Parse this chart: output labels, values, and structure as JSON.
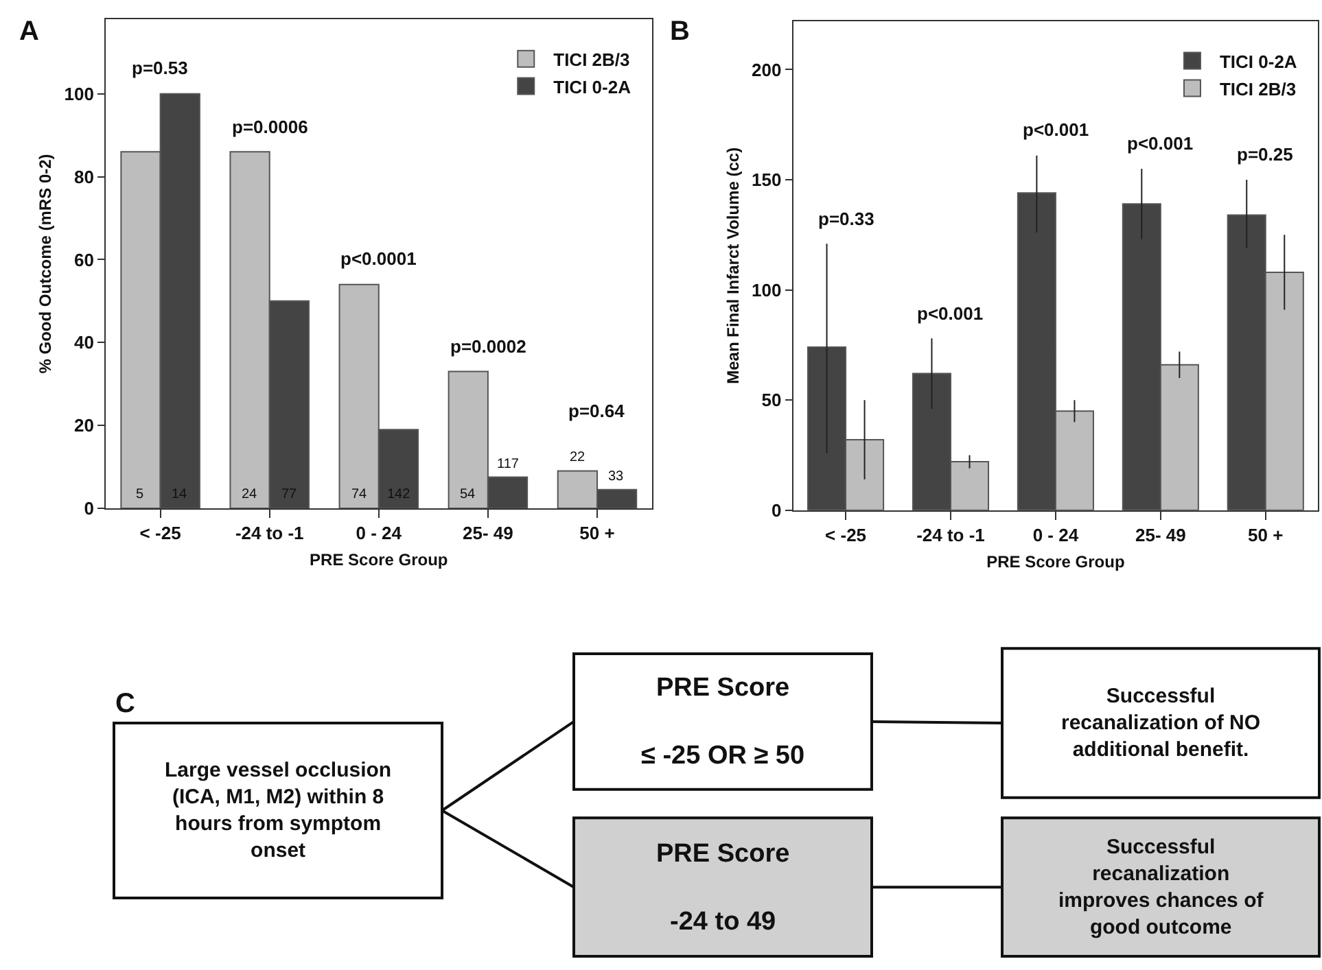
{
  "chart_data": [
    {
      "type": "bar",
      "title": "A",
      "xlabel": "PRE Score Group",
      "ylabel": "% Good Outcome (mRS 0-2)",
      "categories": [
        "< -25",
        "-24 to -1",
        "0 - 24",
        "25- 49",
        "50 +"
      ],
      "series": [
        {
          "name": "TICI 2B/3",
          "color": "#bdbdbd",
          "values": [
            86,
            86,
            54,
            33,
            9
          ]
        },
        {
          "name": "TICI 0-2A",
          "color": "#444444",
          "values": [
            100,
            50,
            19,
            7.5,
            4.5
          ]
        }
      ],
      "ylim": [
        0,
        118
      ],
      "yticks": [
        0,
        20,
        40,
        60,
        80,
        100
      ],
      "legend": "top right",
      "annotations": [
        "p=0.53",
        "p=0.0006",
        "p<0.0001",
        "p=0.0002",
        "p=0.64",
        "5",
        "24",
        "74",
        "54",
        "22",
        "14",
        "77",
        "142",
        "117",
        "33"
      ]
    },
    {
      "type": "bar",
      "title": "B",
      "xlabel": "PRE Score Group",
      "ylabel": "Mean Final Infarct Volume (cc)",
      "categories": [
        "< -25",
        "-24 to -1",
        "0 - 24",
        "25- 49",
        "50 +"
      ],
      "series": [
        {
          "name": "TICI 0-2A",
          "color": "#444444",
          "values": [
            74,
            62,
            144,
            139,
            134
          ],
          "errors": [
            [
              26,
              121
            ],
            [
              46,
              78
            ],
            [
              126,
              161
            ],
            [
              123,
              155
            ],
            [
              119,
              150
            ]
          ]
        },
        {
          "name": "TICI 2B/3",
          "color": "#bdbdbd",
          "values": [
            32,
            22,
            45,
            66,
            108
          ],
          "errors": [
            [
              14,
              50
            ],
            [
              19,
              25
            ],
            [
              40,
              50
            ],
            [
              60,
              72
            ],
            [
              91,
              125
            ]
          ]
        }
      ],
      "ylim": [
        0,
        222
      ],
      "yticks": [
        0,
        50,
        100,
        150,
        200
      ],
      "legend": "top right",
      "annotations": [
        "p=0.33",
        "p<0.001",
        "p<0.001",
        "p<0.001",
        "p=0.25"
      ]
    },
    {
      "type": "other",
      "title": "C",
      "annotations": [
        "Large vessel occlusion\n(ICA, M1, M2) within 8\nhours from symptom\nonset",
        "PRE Score\n\n≤ -25 OR ≥ 50",
        "Successful\nrecanalization of NO\nadditional benefit.",
        "PRE Score\n\n-24 to 49",
        "Successful\nrecanalization\nimproves chances of\ngood outcome"
      ]
    }
  ]
}
